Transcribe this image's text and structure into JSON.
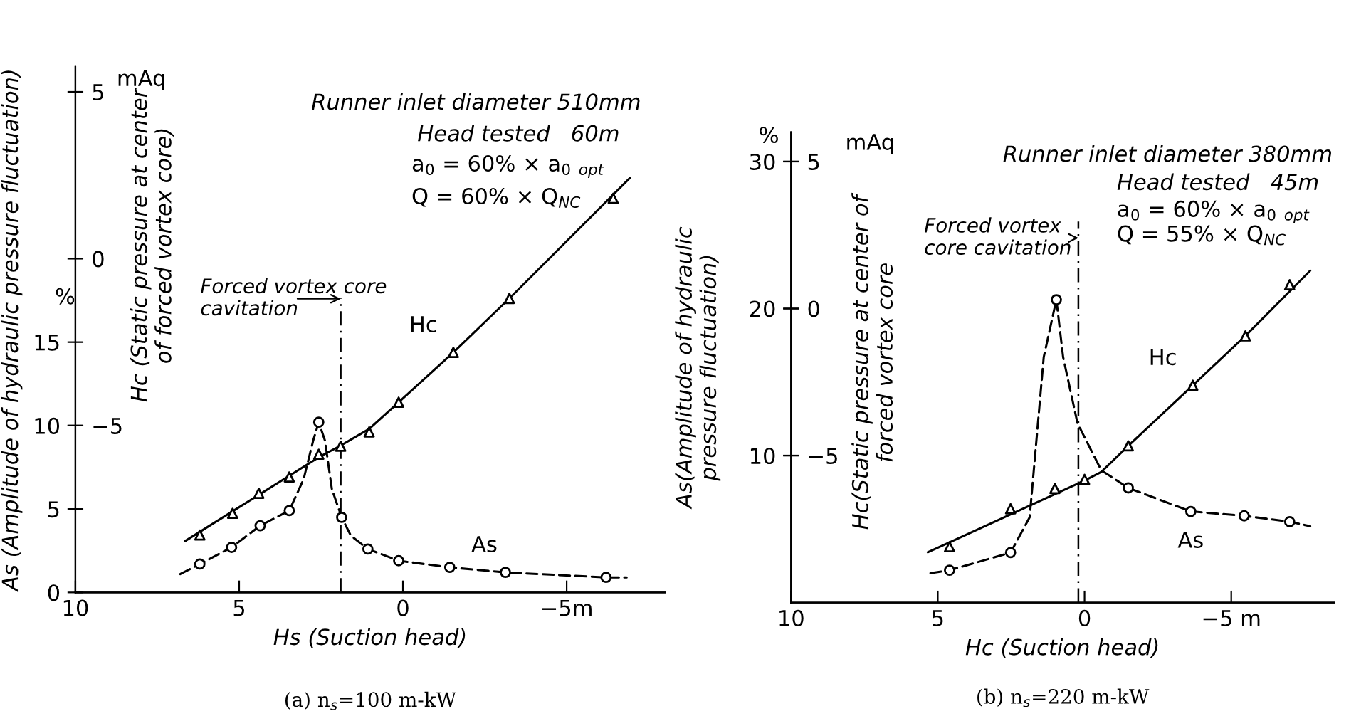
{
  "chart_data": [
    {
      "type": "line",
      "title": "(a) n$_{s}$=100 m-kW",
      "xlabel": "Hs (Suction head)",
      "ylabel": "As (Amplitude of hydraulic pressure fluctuation)",
      "y2label": "Hc (Static pressure at center\nof forced vortex core)",
      "xlim": [
        10,
        -8
      ],
      "xticks": [
        10,
        5,
        0,
        {
          "value": -5,
          "label": "−5m"
        }
      ],
      "ylim": [
        0,
        31.5
      ],
      "yticks": [
        0,
        5,
        10,
        15
      ],
      "y2lim": [
        -10,
        5.75
      ],
      "y2ticks": [
        {
          "value": -5,
          "label": "−5"
        },
        0,
        5
      ],
      "grid": false,
      "ref_lines": [
        {
          "axis": "x",
          "value": 1.9,
          "label": null,
          "color": "#000000",
          "line_style": "dashed"
        }
      ],
      "annotations": [
        "%",
        "mAq",
        "Runner inlet diameter 510mm",
        "Head tested   60m",
        "a$_{0}$ = 60% × a$_{0}$ $_{opt}$",
        "Q = 60% × Q$_{NC}$",
        {
          "text": "Forced vortex core\ncavitation",
          "x": 1.9,
          "y": 17.6
        }
      ],
      "series": [
        {
          "name": "As",
          "color": "#000000",
          "line_style": "dashed",
          "marker": "none",
          "x": [
            6.8,
            6.2,
            5.23,
            4.36,
            3.47,
            3.03,
            2.74,
            2.57,
            2.38,
            2.17,
            1.87,
            1.59,
            1.07,
            0.13,
            -1.43,
            -3.13,
            -6.2,
            -6.83
          ],
          "values": [
            1.1,
            1.7,
            2.7,
            4.0,
            4.9,
            6.8,
            9.1,
            10.2,
            9.1,
            6.2,
            4.5,
            3.4,
            2.6,
            1.9,
            1.5,
            1.2,
            0.9,
            0.9
          ]
        },
        {
          "type": "scatter",
          "color": "#000000",
          "marker": "circle",
          "x": [
            6.2,
            5.23,
            4.36,
            3.47,
            2.57,
            1.87,
            1.07,
            0.13,
            -1.43,
            -3.13,
            -6.2
          ],
          "values": [
            1.7,
            2.7,
            4.0,
            4.9,
            10.2,
            4.5,
            2.6,
            1.9,
            1.5,
            1.2,
            0.9
          ]
        },
        {
          "name": "Hc",
          "axis": "y2",
          "color": "#000000",
          "line_style": "solid",
          "marker": "none",
          "x": [
            6.65,
            2.57,
            1.9,
            1.03,
            0.13,
            -1.54,
            -3.25,
            -6.94
          ],
          "values": [
            -8.46,
            -5.95,
            -5.6,
            -5.1,
            -4.3,
            -2.81,
            -1.19,
            2.43
          ]
        },
        {
          "type": "scatter",
          "axis": "y2",
          "color": "#000000",
          "marker": "triangle",
          "x": [
            6.2,
            5.2,
            4.4,
            3.47,
            2.57,
            1.9,
            1.03,
            0.13,
            -1.54,
            -3.25,
            -6.42
          ],
          "values": [
            -8.28,
            -7.63,
            -7.03,
            -6.54,
            -5.86,
            -5.62,
            -5.19,
            -4.3,
            -2.81,
            -1.19,
            1.81
          ]
        }
      ]
    },
    {
      "type": "line",
      "title": "(b) n$_{s}$=220 m-kW",
      "xlabel": "Hc (Suction head)",
      "ylabel": "As(Amplitude of hydraulic\npressure fluctuation)",
      "y2label": "Hc(Static pressure at center of\nforced vortex core",
      "xlim": [
        10,
        -8.5
      ],
      "xticks": [
        10,
        5,
        0,
        {
          "value": -5,
          "label": "−5 m"
        }
      ],
      "ylim": [
        0,
        32
      ],
      "yticks": [
        10,
        20,
        30
      ],
      "y2lim": [
        -10,
        6
      ],
      "y2ticks": [
        {
          "value": -5,
          "label": "−5"
        },
        0,
        5
      ],
      "grid": false,
      "ref_lines": [
        {
          "axis": "x",
          "value": 0.21,
          "label": null,
          "color": "#000000",
          "line_style": "dashed"
        }
      ],
      "annotations": [
        "%",
        "mAq",
        "Runner inlet diameter 380mm",
        "Head tested   45m",
        "a$_{0}$ = 60% × a$_{0}$ $_{opt}$",
        "Q = 55% × Q$_{NC}$",
        {
          "text": "Forced vortex\ncore cavitation",
          "x": 0.21,
          "y": 24.8
        }
      ],
      "series": [
        {
          "name": "As",
          "color": "#000000",
          "line_style": "dashed",
          "marker": "none",
          "x": [
            5.25,
            4.6,
            2.52,
            1.87,
            1.39,
            0.96,
            0.73,
            0.24,
            -0.57,
            -1.49,
            -3.62,
            -5.44,
            -6.99,
            -7.69
          ],
          "values": [
            2.0,
            2.2,
            3.4,
            5.8,
            16.7,
            20.6,
            16.7,
            12.2,
            9.0,
            7.8,
            6.2,
            5.9,
            5.5,
            5.2
          ]
        },
        {
          "type": "scatter",
          "color": "#000000",
          "marker": "circle",
          "x": [
            4.6,
            2.52,
            0.96,
            -1.49,
            -3.62,
            -5.44,
            -6.99
          ],
          "values": [
            2.2,
            3.4,
            20.6,
            7.8,
            6.2,
            5.9,
            5.5
          ]
        },
        {
          "name": "Hc",
          "axis": "y2",
          "color": "#000000",
          "line_style": "solid",
          "marker": "none",
          "x": [
            5.34,
            0.0,
            -0.57,
            -1.49,
            -3.69,
            -5.48,
            -7.69
          ],
          "values": [
            -8.29,
            -5.85,
            -5.56,
            -4.67,
            -2.61,
            -0.93,
            1.29
          ]
        },
        {
          "type": "scatter",
          "axis": "y2",
          "color": "#000000",
          "marker": "triangle",
          "x": [
            4.6,
            2.52,
            1.01,
            0.0,
            -1.49,
            -3.69,
            -5.48,
            -6.99
          ],
          "values": [
            -8.1,
            -6.81,
            -6.12,
            -5.81,
            -4.67,
            -2.61,
            -0.93,
            0.81
          ]
        }
      ]
    }
  ]
}
